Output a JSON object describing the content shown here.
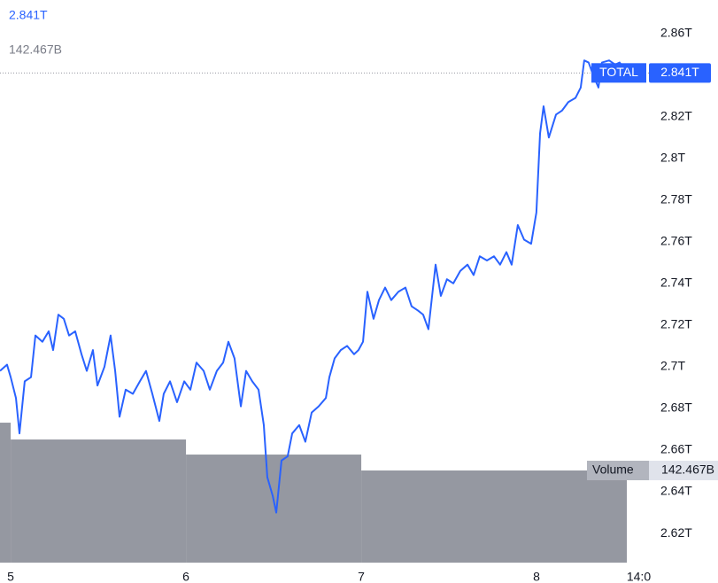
{
  "chart_data": {
    "type": "line",
    "xlim": [
      4.939,
      8.626
    ],
    "xticks": [
      5,
      6,
      7,
      8,
      {
        "value": 8.583,
        "label": "14:0"
      }
    ],
    "ylim": [
      2.606,
      2.876
    ],
    "yticks": [
      {
        "value": 2.62,
        "label": "2.62T"
      },
      {
        "value": 2.64,
        "label": "2.64T"
      },
      {
        "value": 2.66,
        "label": "2.66T"
      },
      {
        "value": 2.68,
        "label": "2.68T"
      },
      {
        "value": 2.7,
        "label": "2.7T"
      },
      {
        "value": 2.72,
        "label": "2.72T"
      },
      {
        "value": 2.74,
        "label": "2.74T"
      },
      {
        "value": 2.76,
        "label": "2.76T"
      },
      {
        "value": 2.78,
        "label": "2.78T"
      },
      {
        "value": 2.8,
        "label": "2.8T"
      },
      {
        "value": 2.82,
        "label": "2.82T"
      },
      {
        "value": 2.84,
        "label": "2.84T"
      },
      {
        "value": 2.86,
        "label": "2.86T"
      }
    ],
    "y2lim": [
      0,
      870
    ],
    "series": [
      {
        "name": "TOTAL",
        "type": "line",
        "color": "#2962ff",
        "last_label": "2.841T",
        "x": [
          4.939,
          4.979,
          5.0,
          5.03,
          5.05,
          5.08,
          5.116,
          5.141,
          5.181,
          5.217,
          5.242,
          5.272,
          5.303,
          5.333,
          5.368,
          5.404,
          5.434,
          5.469,
          5.495,
          5.535,
          5.57,
          5.596,
          5.621,
          5.656,
          5.697,
          5.737,
          5.772,
          5.808,
          5.848,
          5.873,
          5.909,
          5.949,
          5.99,
          6.025,
          6.06,
          6.101,
          6.136,
          6.176,
          6.212,
          6.242,
          6.277,
          6.313,
          6.343,
          6.378,
          6.414,
          6.444,
          6.464,
          6.495,
          6.515,
          6.545,
          6.58,
          6.606,
          6.646,
          6.681,
          6.717,
          6.757,
          6.798,
          6.818,
          6.848,
          6.883,
          6.919,
          6.959,
          6.984,
          7.01,
          7.035,
          7.07,
          7.101,
          7.136,
          7.171,
          7.212,
          7.252,
          7.287,
          7.323,
          7.353,
          7.383,
          7.424,
          7.454,
          7.489,
          7.525,
          7.565,
          7.606,
          7.641,
          7.676,
          7.717,
          7.757,
          7.792,
          7.828,
          7.858,
          7.893,
          7.929,
          7.969,
          7.999,
          8.02,
          8.04,
          8.07,
          8.111,
          8.146,
          8.181,
          8.222,
          8.252,
          8.272,
          8.297,
          8.323,
          8.353,
          8.373,
          8.414,
          8.449,
          8.474,
          8.515
        ],
        "values": [
          2.698,
          2.701,
          2.695,
          2.685,
          2.668,
          2.693,
          2.695,
          2.715,
          2.712,
          2.717,
          2.708,
          2.725,
          2.723,
          2.715,
          2.717,
          2.706,
          2.698,
          2.708,
          2.691,
          2.7,
          2.715,
          2.698,
          2.676,
          2.689,
          2.687,
          2.693,
          2.698,
          2.687,
          2.674,
          2.687,
          2.693,
          2.683,
          2.693,
          2.689,
          2.702,
          2.698,
          2.689,
          2.698,
          2.702,
          2.712,
          2.704,
          2.681,
          2.698,
          2.693,
          2.689,
          2.672,
          2.647,
          2.638,
          2.63,
          2.655,
          2.657,
          2.668,
          2.672,
          2.664,
          2.678,
          2.681,
          2.685,
          2.695,
          2.704,
          2.708,
          2.71,
          2.706,
          2.708,
          2.712,
          2.736,
          2.723,
          2.732,
          2.738,
          2.732,
          2.736,
          2.738,
          2.729,
          2.727,
          2.725,
          2.718,
          2.749,
          2.734,
          2.742,
          2.74,
          2.746,
          2.749,
          2.744,
          2.753,
          2.751,
          2.753,
          2.749,
          2.755,
          2.749,
          2.768,
          2.761,
          2.759,
          2.774,
          2.812,
          2.825,
          2.81,
          2.821,
          2.823,
          2.827,
          2.829,
          2.834,
          2.847,
          2.846,
          2.84,
          2.834,
          2.846,
          2.847,
          2.845,
          2.846,
          2.841
        ]
      },
      {
        "name": "Volume",
        "type": "bar",
        "axis": "y2",
        "color": "#9598a1",
        "last_label": "142.467B",
        "bins": [
          4.939,
          5,
          6,
          7,
          8.515
        ],
        "values": [
          216.4,
          190.4,
          167.1,
          142.467
        ]
      }
    ]
  }
}
